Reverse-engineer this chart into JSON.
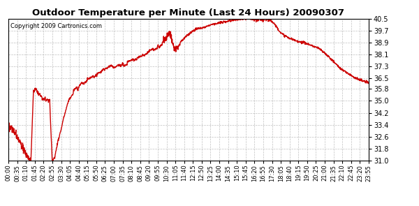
{
  "title": "Outdoor Temperature per Minute (Last 24 Hours) 20090307",
  "copyright": "Copyright 2009 Cartronics.com",
  "line_color": "#cc0000",
  "background_color": "#ffffff",
  "grid_color": "#b0b0b0",
  "y_ticks": [
    31.0,
    31.8,
    32.6,
    33.4,
    34.2,
    35.0,
    35.8,
    36.5,
    37.3,
    38.1,
    38.9,
    39.7,
    40.5
  ],
  "ylim": [
    31.0,
    40.5
  ],
  "x_labels": [
    "00:00",
    "00:35",
    "01:10",
    "01:45",
    "02:20",
    "02:55",
    "03:30",
    "04:05",
    "04:40",
    "05:15",
    "05:50",
    "06:25",
    "07:00",
    "07:35",
    "08:10",
    "08:45",
    "09:20",
    "09:55",
    "10:30",
    "11:05",
    "11:40",
    "12:15",
    "12:50",
    "13:25",
    "14:00",
    "14:35",
    "15:10",
    "15:45",
    "16:20",
    "16:55",
    "17:30",
    "18:05",
    "18:40",
    "19:15",
    "19:50",
    "20:25",
    "21:00",
    "21:35",
    "22:10",
    "22:45",
    "23:20",
    "23:55"
  ],
  "line_width": 1.0,
  "cp_minutes": [
    0,
    20,
    40,
    60,
    75,
    90,
    100,
    110,
    120,
    135,
    150,
    165,
    175,
    185,
    200,
    220,
    240,
    260,
    280,
    300,
    320,
    350,
    380,
    420,
    460,
    500,
    540,
    580,
    610,
    630,
    645,
    660,
    675,
    690,
    710,
    730,
    750,
    780,
    810,
    840,
    870,
    900,
    930,
    960,
    990,
    1010,
    1025,
    1040,
    1060,
    1090,
    1120,
    1150,
    1180,
    1210,
    1240,
    1270,
    1300,
    1330,
    1360,
    1390,
    1420,
    1440
  ],
  "cp_temps": [
    33.4,
    33.0,
    32.4,
    31.8,
    31.3,
    31.0,
    35.7,
    35.8,
    35.5,
    35.2,
    35.1,
    35.0,
    31.0,
    31.2,
    32.5,
    33.8,
    35.0,
    35.5,
    35.8,
    36.2,
    36.5,
    36.8,
    37.1,
    37.3,
    37.5,
    37.8,
    38.1,
    38.5,
    38.8,
    39.2,
    39.5,
    38.6,
    38.5,
    39.0,
    39.3,
    39.6,
    39.8,
    39.9,
    40.1,
    40.2,
    40.3,
    40.4,
    40.45,
    40.5,
    40.4,
    40.45,
    40.5,
    40.45,
    40.2,
    39.5,
    39.2,
    39.0,
    38.9,
    38.7,
    38.5,
    38.1,
    37.6,
    37.1,
    36.8,
    36.5,
    36.3,
    36.2
  ]
}
